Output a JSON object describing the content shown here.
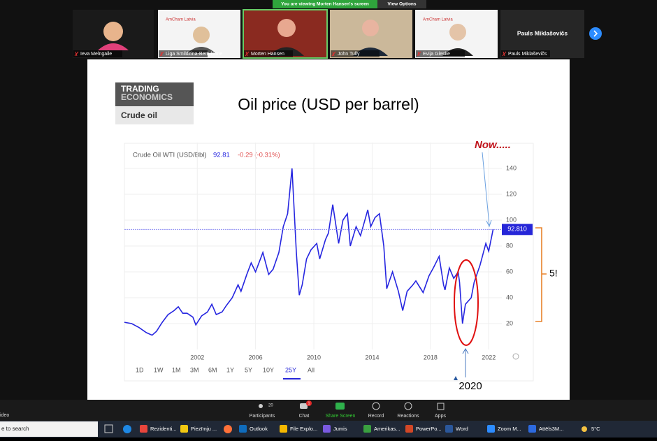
{
  "banner": {
    "viewing": "You are viewing Morten Hansen's screen",
    "options": "View Options"
  },
  "participants": [
    {
      "name": "Ieva Melngaile"
    },
    {
      "name": "Liga Smildzina-Bertulsone",
      "org": "AmCham Latvia"
    },
    {
      "name": "Morten Hansen"
    },
    {
      "name": "John Tully"
    },
    {
      "name": "Evija Gleske",
      "org": "AmCham Latvia"
    },
    {
      "name": "Pauls Miklaševičs",
      "display": "Pauls Miklaševičs"
    }
  ],
  "slide": {
    "logo_top": "TRADING",
    "logo_bottom": "ECONOMICS",
    "logo_sub": "Crude oil",
    "title": "Oil price (USD per barrel)",
    "chart": {
      "type": "line",
      "title": "Crude Oil WTI (USD/Bbl)",
      "price": "92.81",
      "change": "-0.29 (-0.31%)",
      "color": "#2626e0",
      "x": [
        1997.0,
        1997.5,
        1998.0,
        1998.5,
        1998.9,
        1999.2,
        1999.6,
        2000.0,
        2000.4,
        2000.7,
        2001.0,
        2001.3,
        2001.7,
        2001.9,
        2002.3,
        2002.7,
        2003.0,
        2003.3,
        2003.7,
        2004.0,
        2004.4,
        2004.8,
        2005.0,
        2005.4,
        2005.7,
        2006.0,
        2006.5,
        2006.9,
        2007.2,
        2007.6,
        2007.9,
        2008.2,
        2008.5,
        2008.8,
        2009.0,
        2009.2,
        2009.5,
        2009.8,
        2010.2,
        2010.4,
        2010.8,
        2011.0,
        2011.3,
        2011.7,
        2012.0,
        2012.3,
        2012.5,
        2012.9,
        2013.2,
        2013.7,
        2013.9,
        2014.2,
        2014.5,
        2014.8,
        2015.0,
        2015.4,
        2015.8,
        2016.1,
        2016.4,
        2016.8,
        2017.0,
        2017.5,
        2017.9,
        2018.2,
        2018.6,
        2018.9,
        2019.0,
        2019.3,
        2019.6,
        2019.9,
        2020.0,
        2020.2,
        2020.4,
        2020.8,
        2021.0,
        2021.4,
        2021.8,
        2022.0,
        2022.3
      ],
      "values": [
        21,
        20,
        17,
        13,
        11,
        14,
        21,
        27,
        30,
        33,
        28,
        28,
        25,
        19,
        26,
        29,
        35,
        27,
        29,
        34,
        40,
        50,
        45,
        58,
        67,
        60,
        75,
        58,
        62,
        75,
        95,
        105,
        140,
        75,
        42,
        50,
        70,
        77,
        82,
        70,
        85,
        90,
        112,
        82,
        100,
        105,
        80,
        95,
        88,
        108,
        95,
        102,
        105,
        80,
        47,
        60,
        45,
        30,
        45,
        50,
        53,
        44,
        57,
        63,
        72,
        50,
        46,
        63,
        55,
        60,
        52,
        20,
        35,
        40,
        52,
        65,
        82,
        76,
        92.81
      ],
      "xlim": [
        1997,
        2022.9
      ],
      "ylim": [
        0,
        160
      ],
      "xticks": [
        2002,
        2006,
        2010,
        2014,
        2018,
        2022
      ],
      "yticks": [
        20,
        40,
        60,
        80,
        100,
        120,
        140
      ],
      "grid": true,
      "current": {
        "value": 92.81,
        "label": "92.810"
      },
      "ranges": [
        "1D",
        "1W",
        "1M",
        "3M",
        "6M",
        "1Y",
        "5Y",
        "10Y",
        "25Y",
        "All"
      ]
    },
    "annotations": {
      "now": "Now.....",
      "year": "2020",
      "ratio": "5!"
    }
  },
  "toolbar": {
    "participants": "Participants",
    "count": "20",
    "chat": "Chat",
    "chat_badge": "1",
    "share": "Share Screen",
    "record": "Record",
    "reactions": "Reactions",
    "apps": "Apps",
    "video": "ideo"
  },
  "taskbar": {
    "search": "e to search",
    "apps": [
      "Rezidenti...",
      "Piezīmju ...",
      "Outlook",
      "File Explo...",
      "Jumis",
      "Amerikas...",
      "PowerPo...",
      "Word",
      "Zoom M...",
      "Attēls3M..."
    ],
    "weather": "5°C"
  }
}
